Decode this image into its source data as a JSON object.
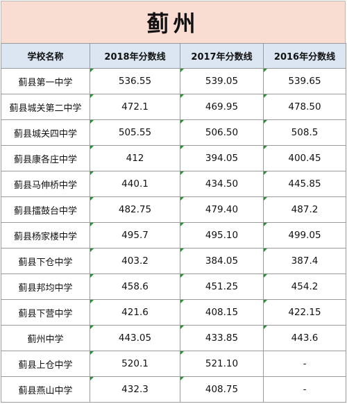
{
  "title": "蓟州",
  "colors": {
    "title_bg": "#f9ddd3",
    "header_bg": "#dbe6f2",
    "grid": "#9a9a9a",
    "cell_marker": "#2e8b3a"
  },
  "table": {
    "headers": [
      "学校名称",
      "2018年分数线",
      "2017年分数线",
      "2016年分数线"
    ],
    "rows": [
      [
        "蓟县第一中学",
        "536.55",
        "539.05",
        "539.65"
      ],
      [
        "蓟县城关第二中学",
        "472.1",
        "469.95",
        "478.50"
      ],
      [
        "蓟县城关四中学",
        "505.55",
        "506.50",
        "508.5"
      ],
      [
        "蓟县康各庄中学",
        "412",
        "394.05",
        "400.45"
      ],
      [
        "蓟县马伸桥中学",
        "440.1",
        "434.50",
        "445.85"
      ],
      [
        "蓟县擂鼓台中学",
        "482.75",
        "479.40",
        "487.2"
      ],
      [
        "蓟县杨家楼中学",
        "495.7",
        "495.10",
        "499.05"
      ],
      [
        "蓟县下仓中学",
        "403.2",
        "384.05",
        "387.4"
      ],
      [
        "蓟县邦均中学",
        "458.6",
        "451.25",
        "454.2"
      ],
      [
        "蓟县下营中学",
        "421.6",
        "408.15",
        "422.15"
      ],
      [
        "蓟州中学",
        "443.05",
        "433.85",
        "443.6"
      ],
      [
        "蓟县上仓中学",
        "520.1",
        "521.10",
        "-"
      ],
      [
        "蓟县燕山中学",
        "432.3",
        "408.75",
        "-"
      ]
    ]
  }
}
